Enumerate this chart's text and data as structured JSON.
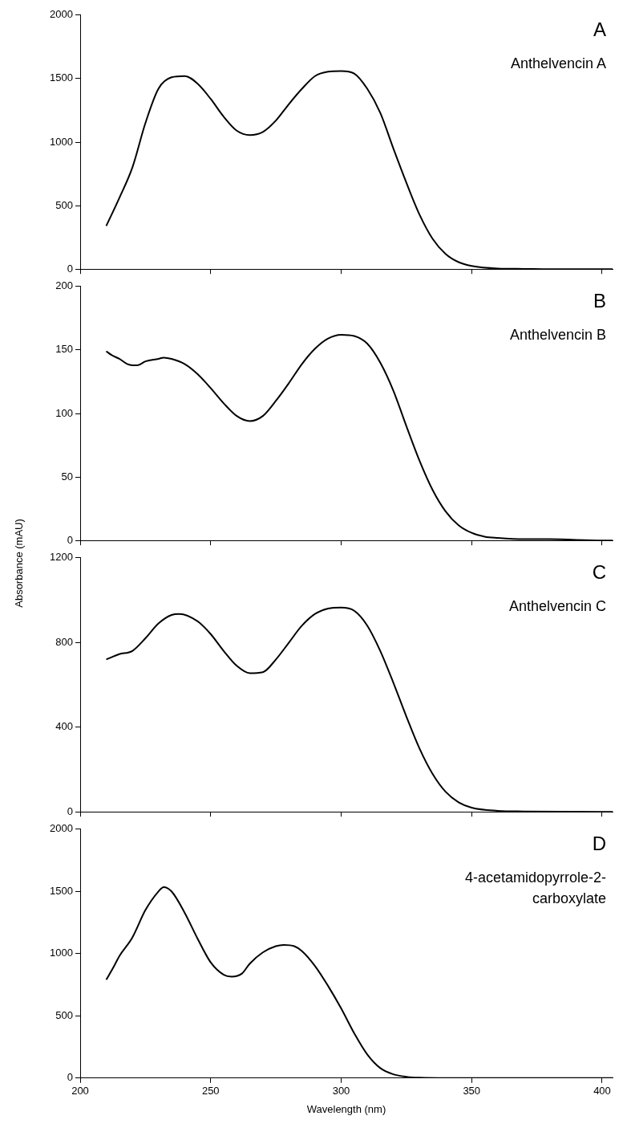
{
  "chart_data": [
    {
      "type": "line",
      "annotations": [
        "A",
        "Anthelvencin A"
      ],
      "tick_labels": "y",
      "grid": false,
      "legend": false,
      "marker": "none",
      "line_style": "solid",
      "xlim": [
        200,
        404
      ],
      "xticks": [
        200,
        250,
        300,
        350,
        400
      ],
      "ylim": [
        0,
        2000
      ],
      "yticks": [
        0,
        500,
        1000,
        1500,
        2000
      ],
      "x": [
        210,
        215,
        220,
        225,
        230,
        235,
        240,
        245,
        250,
        255,
        260,
        265,
        270,
        275,
        280,
        285,
        290,
        295,
        300,
        305,
        310,
        315,
        320,
        325,
        330,
        335,
        340,
        345,
        350,
        360,
        370,
        380,
        400,
        404
      ],
      "series": [
        {
          "color": "#000000",
          "values": [
            340,
            560,
            800,
            1150,
            1420,
            1510,
            1520,
            1460,
            1340,
            1200,
            1090,
            1055,
            1080,
            1170,
            1300,
            1420,
            1520,
            1555,
            1560,
            1540,
            1420,
            1230,
            950,
            680,
            430,
            240,
            120,
            55,
            25,
            5,
            2,
            0,
            0,
            0
          ]
        }
      ]
    },
    {
      "type": "line",
      "annotations": [
        "B",
        "Anthelvencin B"
      ],
      "tick_labels": "y",
      "grid": false,
      "legend": false,
      "marker": "none",
      "line_style": "solid",
      "xlim": [
        200,
        404
      ],
      "xticks": [
        200,
        250,
        300,
        350,
        400
      ],
      "ylim": [
        0,
        200
      ],
      "yticks": [
        0,
        50,
        100,
        150,
        200
      ],
      "x": [
        210,
        212,
        215,
        218,
        220,
        222,
        225,
        230,
        232,
        235,
        240,
        245,
        250,
        255,
        260,
        265,
        270,
        275,
        280,
        285,
        290,
        295,
        300,
        305,
        310,
        315,
        320,
        325,
        330,
        335,
        340,
        345,
        350,
        355,
        360,
        370,
        380,
        400,
        404
      ],
      "series": [
        {
          "color": "#000000",
          "values": [
            149,
            146,
            143,
            139,
            138,
            138,
            141,
            143,
            144,
            143,
            139,
            131,
            120,
            108,
            98,
            94,
            98,
            110,
            124,
            139,
            151,
            159,
            162,
            161,
            155,
            140,
            118,
            90,
            63,
            40,
            23,
            12,
            6,
            3,
            2,
            1,
            1,
            0,
            0
          ]
        }
      ]
    },
    {
      "type": "line",
      "annotations": [
        "C",
        "Anthelvencin C"
      ],
      "ylabel": "Absorbance (mAU)",
      "tick_labels": "y",
      "grid": false,
      "legend": false,
      "marker": "none",
      "line_style": "solid",
      "xlim": [
        200,
        404
      ],
      "xticks": [
        200,
        250,
        300,
        350,
        400
      ],
      "ylim": [
        0,
        1200
      ],
      "yticks": [
        0,
        400,
        800,
        1200
      ],
      "x": [
        210,
        215,
        220,
        225,
        230,
        235,
        238,
        245,
        250,
        255,
        260,
        265,
        270,
        275,
        280,
        285,
        290,
        295,
        300,
        305,
        310,
        315,
        320,
        325,
        330,
        335,
        340,
        345,
        350,
        360,
        370,
        400,
        404
      ],
      "series": [
        {
          "color": "#000000",
          "values": [
            720,
            745,
            760,
            820,
            890,
            930,
            935,
            900,
            840,
            760,
            690,
            655,
            660,
            720,
            800,
            880,
            935,
            960,
            965,
            950,
            880,
            760,
            610,
            450,
            300,
            180,
            95,
            45,
            20,
            5,
            2,
            0,
            0
          ]
        }
      ]
    },
    {
      "type": "line",
      "annotations": [
        "D",
        "4-acetamidopyrrole-2-carboxylate"
      ],
      "xlabel": "Wavelength (nm)",
      "grid": false,
      "legend": false,
      "marker": "none",
      "line_style": "solid",
      "xlim": [
        200,
        404
      ],
      "xticks": [
        200,
        250,
        300,
        350,
        400
      ],
      "ylim": [
        0,
        2000
      ],
      "yticks": [
        0,
        500,
        1000,
        1500,
        2000
      ],
      "x": [
        210,
        213,
        215,
        220,
        225,
        230,
        232,
        235,
        240,
        245,
        250,
        255,
        258,
        262,
        265,
        270,
        275,
        278,
        282,
        285,
        290,
        295,
        300,
        305,
        310,
        315,
        320,
        325,
        330,
        340,
        400,
        404
      ],
      "series": [
        {
          "color": "#000000",
          "values": [
            790,
            900,
            980,
            1130,
            1350,
            1500,
            1535,
            1500,
            1330,
            1120,
            930,
            830,
            815,
            840,
            920,
            1010,
            1060,
            1070,
            1060,
            1020,
            900,
            740,
            560,
            360,
            190,
            80,
            30,
            10,
            3,
            0,
            0,
            0
          ]
        }
      ]
    }
  ]
}
